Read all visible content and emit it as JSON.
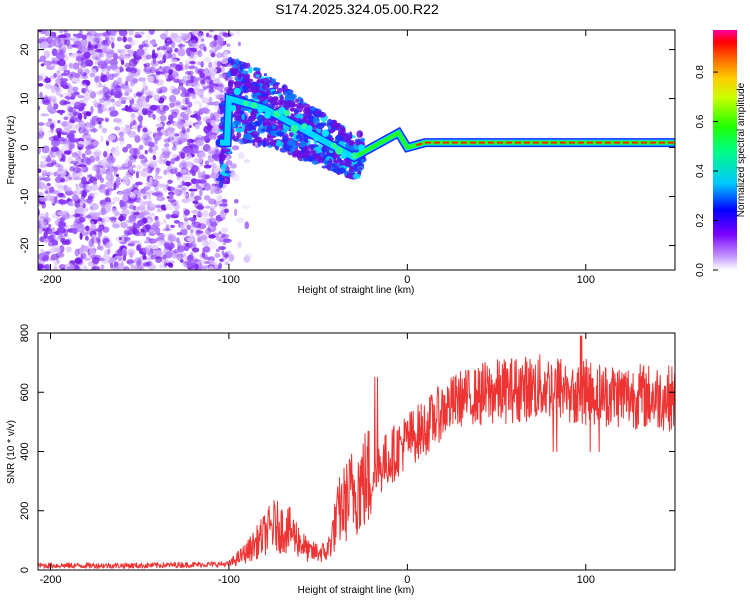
{
  "title": "S174.2025.324.05.00.R22",
  "chart_data": [
    {
      "type": "heatmap",
      "name": "spectrogram",
      "xlabel": "Height of straight line (km)",
      "ylabel": "Frequency (Hz)",
      "xlim": [
        -207,
        150
      ],
      "ylim": [
        -25,
        24
      ],
      "xticks": [
        -200,
        -100,
        0,
        100
      ],
      "yticks": [
        -20,
        -10,
        0,
        10,
        20
      ],
      "colorbar": {
        "label": "Normalized spectral amplitude",
        "range": [
          0,
          0.97
        ],
        "ticks": [
          "0.0",
          "0.2",
          "0.4",
          "0.6",
          "0.8"
        ],
        "tick_values": [
          0.0,
          0.2,
          0.4,
          0.6,
          0.8
        ]
      },
      "description_points": {
        "ridge_height_km": [
          -100,
          -90,
          -80,
          -70,
          -60,
          -50,
          -40,
          -30,
          -20,
          -10,
          -5,
          0,
          10,
          50,
          100,
          150
        ],
        "ridge_frequency_hz": [
          10,
          9,
          8,
          6,
          4,
          2,
          0,
          -2,
          0,
          2,
          3,
          0,
          1,
          1,
          1,
          1
        ]
      }
    },
    {
      "type": "line",
      "name": "snr",
      "xlabel": "Height of straight line (km)",
      "ylabel": "SNR (10 * v/v)",
      "xlim": [
        -207,
        150
      ],
      "ylim": [
        0,
        800
      ],
      "xticks": [
        -200,
        -100,
        0,
        100
      ],
      "yticks": [
        0,
        200,
        400,
        600,
        800
      ],
      "envelope": {
        "x": [
          -207,
          -150,
          -100,
          -90,
          -75,
          -65,
          -55,
          -45,
          -38,
          -30,
          -20,
          -10,
          0,
          10,
          20,
          30,
          40,
          60,
          80,
          100,
          120,
          150
        ],
        "y": [
          15,
          15,
          20,
          60,
          150,
          130,
          60,
          60,
          200,
          270,
          320,
          380,
          440,
          480,
          540,
          580,
          590,
          610,
          620,
          600,
          590,
          580
        ]
      }
    }
  ]
}
